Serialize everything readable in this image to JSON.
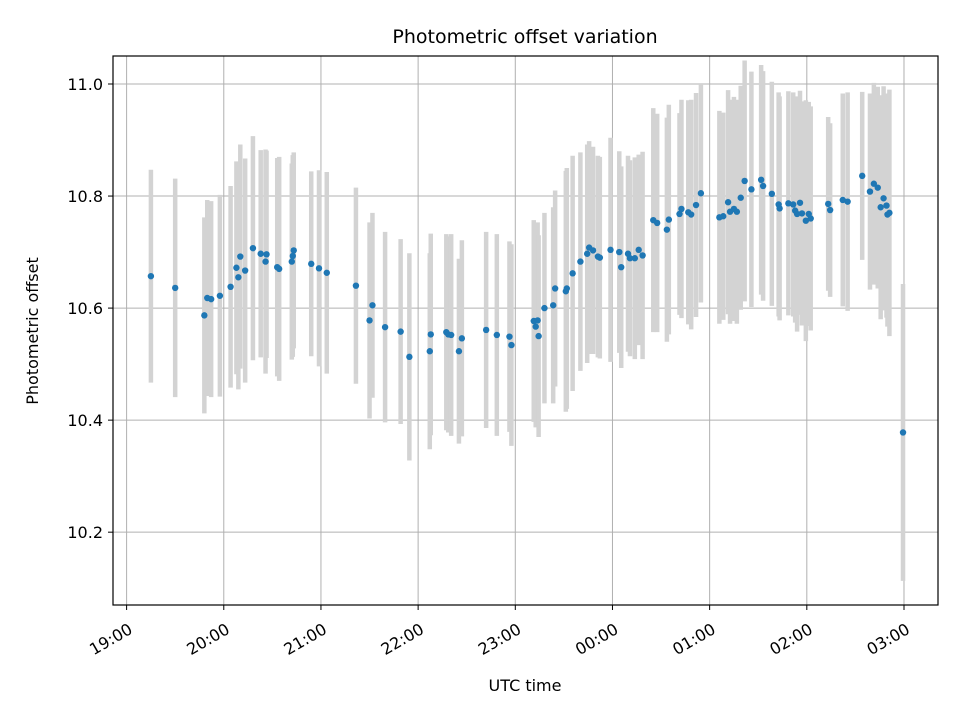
{
  "chart_data": {
    "type": "scatter",
    "title": "Photometric offset variation",
    "xlabel": "UTC time",
    "ylabel": "Photometric offset",
    "x_ticks": [
      "19:00",
      "20:00",
      "21:00",
      "22:00",
      "23:00",
      "00:00",
      "01:00",
      "02:00",
      "03:00"
    ],
    "y_ticks": [
      "10.2",
      "10.4",
      "10.6",
      "10.8",
      "11.0"
    ],
    "xlim": [
      -0.14,
      8.35
    ],
    "ylim": [
      10.07,
      11.05
    ],
    "grid": true,
    "colors": {
      "point": "#1f77b4",
      "errorbar": "#d3d3d3",
      "grid": "#b0b0b0"
    },
    "x_unit": "hours after 19:00 UTC",
    "points": [
      [
        0.25,
        10.657,
        0.19
      ],
      [
        0.5,
        10.636,
        0.195
      ],
      [
        0.8,
        10.587,
        0.175
      ],
      [
        0.83,
        10.618,
        0.175
      ],
      [
        0.87,
        10.616,
        0.175
      ],
      [
        0.96,
        10.622,
        0.18
      ],
      [
        1.07,
        10.638,
        0.18
      ],
      [
        1.13,
        10.672,
        0.19
      ],
      [
        1.15,
        10.655,
        0.2
      ],
      [
        1.17,
        10.692,
        0.2
      ],
      [
        1.22,
        10.667,
        0.2
      ],
      [
        1.3,
        10.707,
        0.2
      ],
      [
        1.38,
        10.697,
        0.185
      ],
      [
        1.43,
        10.683,
        0.2
      ],
      [
        1.44,
        10.696,
        0.185
      ],
      [
        1.55,
        10.673,
        0.195
      ],
      [
        1.57,
        10.67,
        0.2
      ],
      [
        1.7,
        10.683,
        0.175
      ],
      [
        1.71,
        10.693,
        0.18
      ],
      [
        1.72,
        10.703,
        0.175
      ],
      [
        1.9,
        10.679,
        0.165
      ],
      [
        1.98,
        10.671,
        0.175
      ],
      [
        2.06,
        10.663,
        0.18
      ],
      [
        2.36,
        10.64,
        0.175
      ],
      [
        2.5,
        10.578,
        0.175
      ],
      [
        2.53,
        10.605,
        0.165
      ],
      [
        2.66,
        10.566,
        0.17
      ],
      [
        2.82,
        10.558,
        0.165
      ],
      [
        2.91,
        10.513,
        0.185
      ],
      [
        3.12,
        10.523,
        0.175
      ],
      [
        3.13,
        10.553,
        0.18
      ],
      [
        3.29,
        10.557,
        0.175
      ],
      [
        3.31,
        10.553,
        0.175
      ],
      [
        3.34,
        10.552,
        0.18
      ],
      [
        3.42,
        10.523,
        0.165
      ],
      [
        3.45,
        10.546,
        0.175
      ],
      [
        3.7,
        10.561,
        0.175
      ],
      [
        3.81,
        10.552,
        0.18
      ],
      [
        3.94,
        10.549,
        0.17
      ],
      [
        3.96,
        10.534,
        0.18
      ],
      [
        4.19,
        10.577,
        0.18
      ],
      [
        4.21,
        10.567,
        0.18
      ],
      [
        4.23,
        10.578,
        0.175
      ],
      [
        4.24,
        10.55,
        0.18
      ],
      [
        4.3,
        10.6,
        0.17
      ],
      [
        4.39,
        10.605,
        0.175
      ],
      [
        4.41,
        10.635,
        0.175
      ],
      [
        4.52,
        10.63,
        0.215
      ],
      [
        4.53,
        10.635,
        0.215
      ],
      [
        4.59,
        10.662,
        0.21
      ],
      [
        4.67,
        10.683,
        0.195
      ],
      [
        4.74,
        10.697,
        0.195
      ],
      [
        4.76,
        10.708,
        0.19
      ],
      [
        4.8,
        10.703,
        0.185
      ],
      [
        4.85,
        10.692,
        0.18
      ],
      [
        4.87,
        10.69,
        0.18
      ],
      [
        4.98,
        10.704,
        0.2
      ],
      [
        5.07,
        10.7,
        0.18
      ],
      [
        5.09,
        10.673,
        0.18
      ],
      [
        5.16,
        10.697,
        0.175
      ],
      [
        5.18,
        10.689,
        0.175
      ],
      [
        5.23,
        10.689,
        0.18
      ],
      [
        5.27,
        10.704,
        0.17
      ],
      [
        5.31,
        10.694,
        0.185
      ],
      [
        5.42,
        10.757,
        0.2
      ],
      [
        5.46,
        10.752,
        0.195
      ],
      [
        5.56,
        10.74,
        0.2
      ],
      [
        5.58,
        10.758,
        0.205
      ],
      [
        5.69,
        10.768,
        0.18
      ],
      [
        5.71,
        10.777,
        0.195
      ],
      [
        5.78,
        10.771,
        0.2
      ],
      [
        5.81,
        10.767,
        0.205
      ],
      [
        5.86,
        10.784,
        0.2
      ],
      [
        5.91,
        10.805,
        0.195
      ],
      [
        6.1,
        10.762,
        0.19
      ],
      [
        6.14,
        10.764,
        0.185
      ],
      [
        6.19,
        10.789,
        0.2
      ],
      [
        6.21,
        10.772,
        0.2
      ],
      [
        6.25,
        10.777,
        0.2
      ],
      [
        6.28,
        10.772,
        0.2
      ],
      [
        6.32,
        10.797,
        0.2
      ],
      [
        6.36,
        10.827,
        0.215
      ],
      [
        6.43,
        10.812,
        0.21
      ],
      [
        6.53,
        10.829,
        0.205
      ],
      [
        6.55,
        10.818,
        0.205
      ],
      [
        6.64,
        10.804,
        0.2
      ],
      [
        6.71,
        10.785,
        0.2
      ],
      [
        6.72,
        10.778,
        0.2
      ],
      [
        6.81,
        10.787,
        0.2
      ],
      [
        6.86,
        10.785,
        0.2
      ],
      [
        6.88,
        10.774,
        0.2
      ],
      [
        6.9,
        10.768,
        0.21
      ],
      [
        6.93,
        10.788,
        0.2
      ],
      [
        6.95,
        10.769,
        0.2
      ],
      [
        6.99,
        10.756,
        0.215
      ],
      [
        7.02,
        10.768,
        0.2
      ],
      [
        7.04,
        10.76,
        0.2
      ],
      [
        7.22,
        10.786,
        0.155
      ],
      [
        7.24,
        10.775,
        0.155
      ],
      [
        7.37,
        10.793,
        0.19
      ],
      [
        7.42,
        10.79,
        0.195
      ],
      [
        7.57,
        10.836,
        0.15
      ],
      [
        7.65,
        10.808,
        0.175
      ],
      [
        7.69,
        10.822,
        0.18
      ],
      [
        7.73,
        10.815,
        0.18
      ],
      [
        7.76,
        10.78,
        0.2
      ],
      [
        7.79,
        10.796,
        0.2
      ],
      [
        7.82,
        10.783,
        0.2
      ],
      [
        7.83,
        10.767,
        0.2
      ],
      [
        7.85,
        10.77,
        0.22
      ],
      [
        7.99,
        10.378,
        0.265
      ]
    ]
  }
}
